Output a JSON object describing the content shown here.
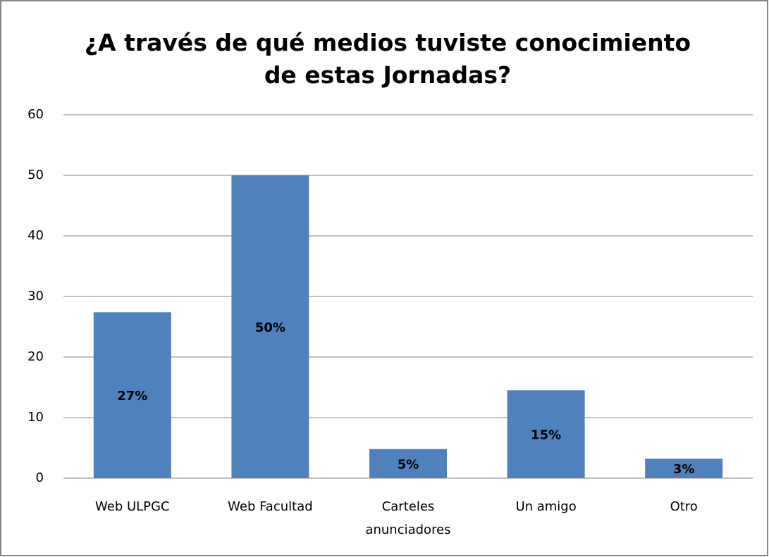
{
  "chart_data": {
    "type": "bar",
    "title": "¿A través de qué medios tuviste conocimiento de estas Jornadas?",
    "categories": [
      "Web ULPGC",
      "Web Facultad",
      "Carteles anunciadores",
      "Un amigo",
      "Otro"
    ],
    "values": [
      27.4,
      50,
      4.8,
      14.5,
      3.2
    ],
    "value_labels": [
      "27%",
      "50%",
      "5%",
      "15%",
      "3%"
    ],
    "color": "#4f81bd",
    "ylim": [
      0,
      60
    ],
    "yticks": [
      0,
      10,
      20,
      30,
      40,
      50,
      60
    ],
    "grid": true
  }
}
